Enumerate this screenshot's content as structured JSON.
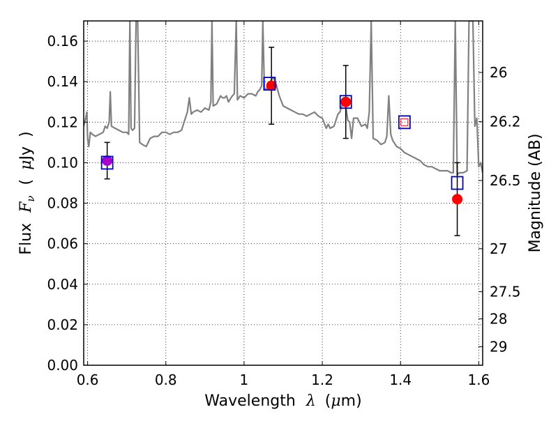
{
  "chart_data": {
    "type": "scatter",
    "xlabel_parts": [
      "Wavelength",
      "λ",
      "(",
      "μ",
      "m)"
    ],
    "ylabel_parts": [
      "Flux",
      "F",
      "ν",
      "(",
      "μ",
      "Jy",
      ")"
    ],
    "y2label": "Magnitude (AB)",
    "xlim": [
      0.59,
      1.61
    ],
    "ylim": [
      0.0,
      0.17
    ],
    "grid": true,
    "x_ticks": [
      0.6,
      0.8,
      1.0,
      1.2,
      1.4,
      1.6
    ],
    "x_tick_labels": [
      "0.6",
      "0.8",
      "1",
      "1.2",
      "1.4",
      "1.6"
    ],
    "y_ticks": [
      0.0,
      0.02,
      0.04,
      0.06,
      0.08,
      0.1,
      0.12,
      0.14,
      0.16
    ],
    "y_tick_labels": [
      "0.00",
      "0.02",
      "0.04",
      "0.06",
      "0.08",
      "0.10",
      "0.12",
      "0.14",
      "0.16"
    ],
    "y2_ticks": [
      26,
      26.2,
      26.5,
      27,
      27.5,
      28,
      29
    ],
    "y2_tick_labels": [
      "26",
      "26.2",
      "26.5",
      "27",
      "27.5",
      "28",
      "29"
    ],
    "series": [
      {
        "kind": "spectrum",
        "color": "#808080",
        "points": [
          [
            0.59,
            0.118
          ],
          [
            0.595,
            0.122
          ],
          [
            0.598,
            0.125
          ],
          [
            0.6,
            0.112
          ],
          [
            0.603,
            0.108
          ],
          [
            0.607,
            0.115
          ],
          [
            0.612,
            0.114
          ],
          [
            0.62,
            0.113
          ],
          [
            0.63,
            0.114
          ],
          [
            0.64,
            0.115
          ],
          [
            0.645,
            0.118
          ],
          [
            0.65,
            0.117
          ],
          [
            0.655,
            0.12
          ],
          [
            0.658,
            0.135
          ],
          [
            0.661,
            0.118
          ],
          [
            0.67,
            0.117
          ],
          [
            0.68,
            0.116
          ],
          [
            0.69,
            0.115
          ],
          [
            0.7,
            0.115
          ],
          [
            0.705,
            0.114
          ],
          [
            0.708,
            0.17
          ],
          [
            0.711,
            0.117
          ],
          [
            0.715,
            0.116
          ],
          [
            0.72,
            0.117
          ],
          [
            0.724,
            0.17
          ],
          [
            0.728,
            0.17
          ],
          [
            0.733,
            0.11
          ],
          [
            0.74,
            0.109
          ],
          [
            0.75,
            0.108
          ],
          [
            0.76,
            0.112
          ],
          [
            0.77,
            0.113
          ],
          [
            0.78,
            0.113
          ],
          [
            0.79,
            0.115
          ],
          [
            0.8,
            0.115
          ],
          [
            0.81,
            0.114
          ],
          [
            0.82,
            0.115
          ],
          [
            0.83,
            0.115
          ],
          [
            0.84,
            0.116
          ],
          [
            0.845,
            0.119
          ],
          [
            0.85,
            0.122
          ],
          [
            0.855,
            0.125
          ],
          [
            0.86,
            0.132
          ],
          [
            0.865,
            0.124
          ],
          [
            0.87,
            0.125
          ],
          [
            0.88,
            0.126
          ],
          [
            0.89,
            0.125
          ],
          [
            0.9,
            0.127
          ],
          [
            0.91,
            0.126
          ],
          [
            0.915,
            0.13
          ],
          [
            0.918,
            0.17
          ],
          [
            0.921,
            0.128
          ],
          [
            0.93,
            0.129
          ],
          [
            0.94,
            0.133
          ],
          [
            0.945,
            0.132
          ],
          [
            0.95,
            0.132
          ],
          [
            0.955,
            0.133
          ],
          [
            0.96,
            0.13
          ],
          [
            0.97,
            0.133
          ],
          [
            0.975,
            0.134
          ],
          [
            0.98,
            0.17
          ],
          [
            0.983,
            0.131
          ],
          [
            0.99,
            0.133
          ],
          [
            1.0,
            0.132
          ],
          [
            1.01,
            0.134
          ],
          [
            1.02,
            0.134
          ],
          [
            1.03,
            0.133
          ],
          [
            1.035,
            0.135
          ],
          [
            1.04,
            0.136
          ],
          [
            1.045,
            0.138
          ],
          [
            1.048,
            0.17
          ],
          [
            1.052,
            0.136
          ],
          [
            1.06,
            0.137
          ],
          [
            1.07,
            0.141
          ],
          [
            1.075,
            0.142
          ],
          [
            1.08,
            0.14
          ],
          [
            1.09,
            0.133
          ],
          [
            1.1,
            0.128
          ],
          [
            1.11,
            0.127
          ],
          [
            1.12,
            0.126
          ],
          [
            1.13,
            0.125
          ],
          [
            1.14,
            0.124
          ],
          [
            1.15,
            0.124
          ],
          [
            1.16,
            0.123
          ],
          [
            1.17,
            0.124
          ],
          [
            1.18,
            0.125
          ],
          [
            1.19,
            0.123
          ],
          [
            1.2,
            0.122
          ],
          [
            1.21,
            0.117
          ],
          [
            1.215,
            0.119
          ],
          [
            1.22,
            0.117
          ],
          [
            1.23,
            0.118
          ],
          [
            1.24,
            0.124
          ],
          [
            1.245,
            0.125
          ],
          [
            1.25,
            0.128
          ],
          [
            1.255,
            0.13
          ],
          [
            1.26,
            0.128
          ],
          [
            1.265,
            0.121
          ],
          [
            1.27,
            0.12
          ],
          [
            1.275,
            0.112
          ],
          [
            1.28,
            0.122
          ],
          [
            1.29,
            0.122
          ],
          [
            1.3,
            0.118
          ],
          [
            1.31,
            0.119
          ],
          [
            1.315,
            0.117
          ],
          [
            1.32,
            0.125
          ],
          [
            1.325,
            0.17
          ],
          [
            1.33,
            0.112
          ],
          [
            1.34,
            0.111
          ],
          [
            1.35,
            0.109
          ],
          [
            1.36,
            0.11
          ],
          [
            1.365,
            0.113
          ],
          [
            1.37,
            0.133
          ],
          [
            1.375,
            0.114
          ],
          [
            1.38,
            0.111
          ],
          [
            1.39,
            0.108
          ],
          [
            1.4,
            0.107
          ],
          [
            1.41,
            0.105
          ],
          [
            1.42,
            0.104
          ],
          [
            1.43,
            0.103
          ],
          [
            1.44,
            0.102
          ],
          [
            1.45,
            0.101
          ],
          [
            1.46,
            0.099
          ],
          [
            1.47,
            0.098
          ],
          [
            1.48,
            0.098
          ],
          [
            1.49,
            0.097
          ],
          [
            1.5,
            0.096
          ],
          [
            1.51,
            0.096
          ],
          [
            1.52,
            0.096
          ],
          [
            1.53,
            0.095
          ],
          [
            1.535,
            0.095
          ],
          [
            1.54,
            0.17
          ],
          [
            1.545,
            0.094
          ],
          [
            1.55,
            0.095
          ],
          [
            1.56,
            0.095
          ],
          [
            1.57,
            0.096
          ],
          [
            1.575,
            0.17
          ],
          [
            1.58,
            0.17
          ],
          [
            1.585,
            0.17
          ],
          [
            1.59,
            0.118
          ],
          [
            1.595,
            0.122
          ],
          [
            1.6,
            0.098
          ],
          [
            1.605,
            0.1
          ],
          [
            1.61,
            0.095
          ]
        ]
      },
      {
        "kind": "observed",
        "marker": "circle",
        "color": "#ff0000",
        "points": [
          {
            "x": 0.65,
            "y": 0.101,
            "err": 0.009
          },
          {
            "x": 1.07,
            "y": 0.138,
            "err": 0.019
          },
          {
            "x": 1.26,
            "y": 0.13,
            "err": 0.018
          },
          {
            "x": 1.545,
            "y": 0.082,
            "err": 0.018
          }
        ]
      },
      {
        "kind": "model",
        "marker": "square",
        "color": "#0000cc",
        "points": [
          {
            "x": 0.65,
            "y": 0.1
          },
          {
            "x": 1.065,
            "y": 0.139
          },
          {
            "x": 1.26,
            "y": 0.13
          },
          {
            "x": 1.41,
            "y": 0.12
          },
          {
            "x": 1.545,
            "y": 0.09
          }
        ]
      }
    ]
  }
}
